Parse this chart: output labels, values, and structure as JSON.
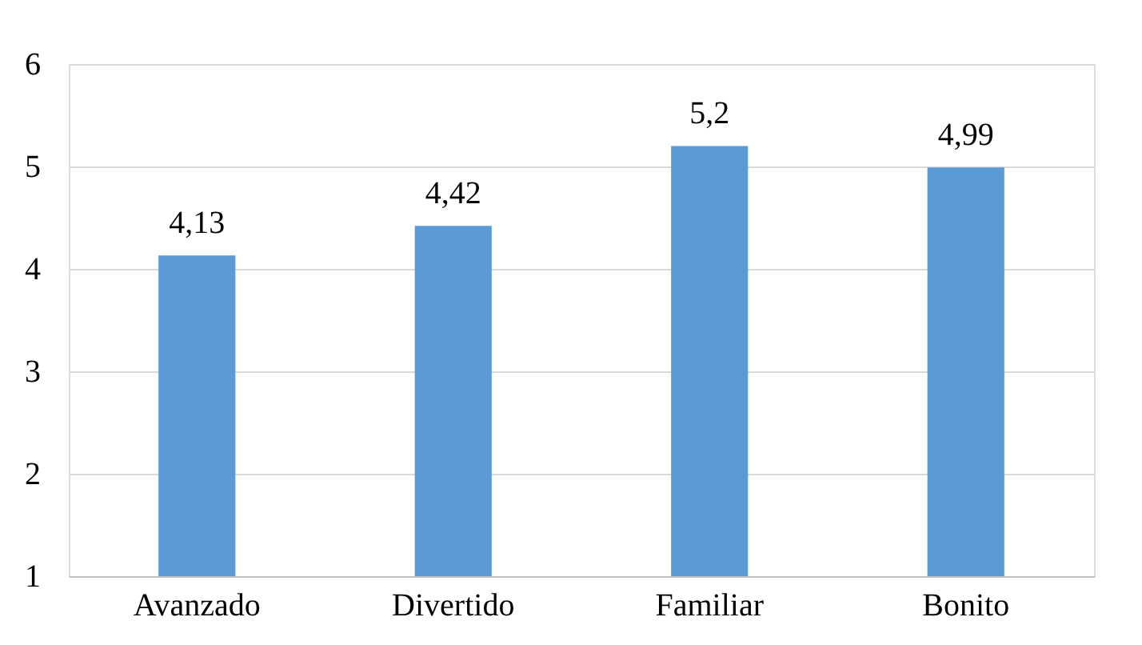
{
  "chart_data": {
    "type": "bar",
    "categories": [
      "Avanzado",
      "Divertido",
      "Familiar",
      "Bonito"
    ],
    "values": [
      4.13,
      4.42,
      5.2,
      4.99
    ],
    "value_labels": [
      "4,13",
      "4,42",
      "5,2",
      "4,99"
    ],
    "color": "#5b9bd5",
    "ylim": [
      1,
      6
    ],
    "yticks": [
      1,
      2,
      3,
      4,
      5,
      6
    ],
    "grid": "y"
  }
}
